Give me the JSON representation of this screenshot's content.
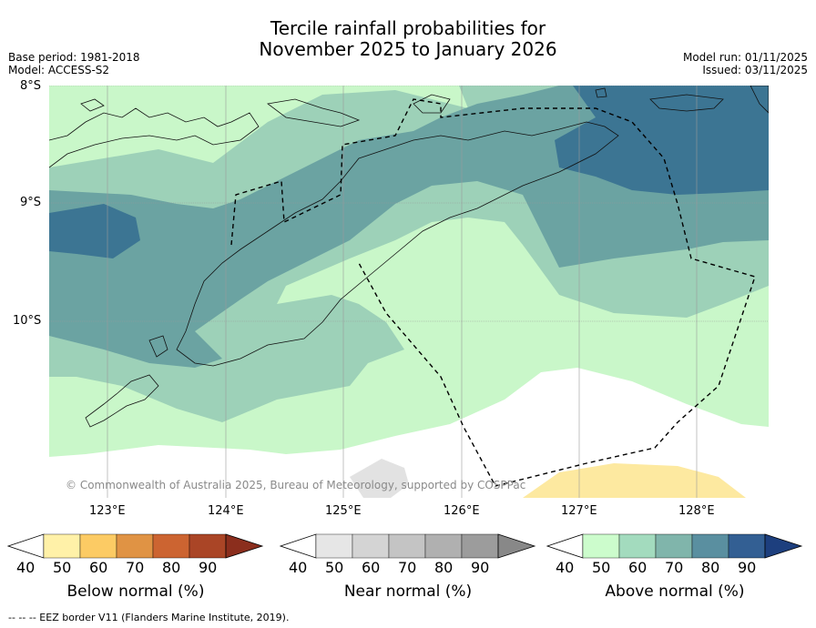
{
  "title_line1": "Tercile rainfall probabilities for",
  "title_line2": "November 2025 to January 2026",
  "base_period": "Base period: 1981-2018",
  "model": "Model: ACCESS-S2",
  "model_run": "Model run: 01/11/2025",
  "issued": "Issued: 03/11/2025",
  "map": {
    "lat_labels": [
      "8°S",
      "9°S",
      "10°S"
    ],
    "lon_labels": [
      "123°E",
      "124°E",
      "125°E",
      "126°E",
      "127°E",
      "128°E"
    ],
    "copyright": "© Commonwealth of Australia 2025, Bureau of Meteorology, supported by COSPPac",
    "colors": {
      "above_40": "#c9f7c9",
      "above_50": "#9dd1b8",
      "above_60": "#6ba3a2",
      "above_70": "#3c7593",
      "below_40": "#fde9a0",
      "near_40": "#e2e2e2"
    }
  },
  "colorbars": {
    "below": {
      "label": "Below normal (%)",
      "ticks": [
        "40",
        "50",
        "60",
        "70",
        "80",
        "90"
      ],
      "colors": [
        "#fff1a8",
        "#fccb64",
        "#e09344",
        "#cc6431",
        "#aa4526",
        "#8b2e1d"
      ]
    },
    "near": {
      "label": "Near normal (%)",
      "ticks": [
        "40",
        "50",
        "60",
        "70",
        "80",
        "90"
      ],
      "colors": [
        "#e6e6e6",
        "#d4d4d4",
        "#c4c4c4",
        "#b0b0b0",
        "#9c9c9c",
        "#888888"
      ]
    },
    "above": {
      "label": "Above normal (%)",
      "ticks": [
        "40",
        "50",
        "60",
        "70",
        "80",
        "90"
      ],
      "colors": [
        "#ccfccc",
        "#a3dbbe",
        "#80b5ab",
        "#5a8fa0",
        "#335f93",
        "#1d3f7e"
      ]
    }
  },
  "footer": "-- -- -- EEZ border V11 (Flanders Marine Institute, 2019)."
}
